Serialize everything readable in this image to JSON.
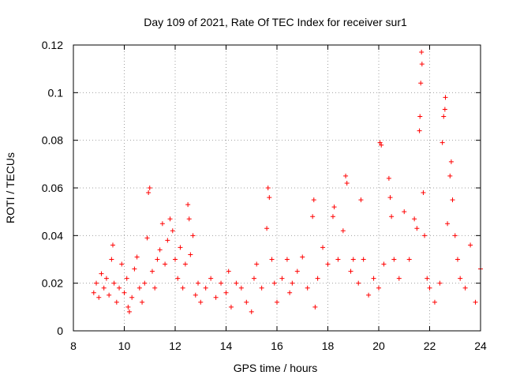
{
  "chart_data": {
    "type": "scatter",
    "title": "Day 109 of 2021, Rate Of TEC Index for receiver sur1",
    "xlabel": "GPS time / hours",
    "ylabel": "ROTI / TECUs",
    "xlim": [
      8,
      24
    ],
    "ylim": [
      0,
      0.12
    ],
    "x_ticks": [
      8,
      10,
      12,
      14,
      16,
      18,
      20,
      22,
      24
    ],
    "x_tick_labels": [
      "8",
      "10",
      "12",
      "14",
      "16",
      "18",
      "20",
      "22",
      "24"
    ],
    "y_ticks": [
      0,
      0.02,
      0.04,
      0.06,
      0.08,
      0.1,
      0.12
    ],
    "y_tick_labels": [
      "0",
      "0.02",
      "0.04",
      "0.06",
      "0.08",
      "0.1",
      "0.12"
    ],
    "grid": true,
    "marker": "plus",
    "color": "#ff0000",
    "series": [
      {
        "name": "ROTI",
        "points": [
          [
            8.8,
            0.016
          ],
          [
            8.9,
            0.02
          ],
          [
            9.0,
            0.014
          ],
          [
            9.1,
            0.024
          ],
          [
            9.2,
            0.018
          ],
          [
            9.3,
            0.022
          ],
          [
            9.4,
            0.015
          ],
          [
            9.5,
            0.03
          ],
          [
            9.55,
            0.036
          ],
          [
            9.6,
            0.02
          ],
          [
            9.7,
            0.012
          ],
          [
            9.8,
            0.018
          ],
          [
            9.9,
            0.028
          ],
          [
            10.0,
            0.016
          ],
          [
            10.1,
            0.022
          ],
          [
            10.15,
            0.01
          ],
          [
            10.2,
            0.008
          ],
          [
            10.3,
            0.014
          ],
          [
            10.4,
            0.026
          ],
          [
            10.5,
            0.031
          ],
          [
            10.6,
            0.018
          ],
          [
            10.7,
            0.012
          ],
          [
            10.8,
            0.02
          ],
          [
            10.9,
            0.039
          ],
          [
            10.95,
            0.058
          ],
          [
            11.0,
            0.06
          ],
          [
            11.1,
            0.025
          ],
          [
            11.2,
            0.018
          ],
          [
            11.3,
            0.03
          ],
          [
            11.4,
            0.034
          ],
          [
            11.5,
            0.045
          ],
          [
            11.6,
            0.028
          ],
          [
            11.7,
            0.038
          ],
          [
            11.8,
            0.047
          ],
          [
            11.9,
            0.042
          ],
          [
            12.0,
            0.03
          ],
          [
            12.1,
            0.022
          ],
          [
            12.2,
            0.035
          ],
          [
            12.3,
            0.018
          ],
          [
            12.4,
            0.028
          ],
          [
            12.5,
            0.053
          ],
          [
            12.55,
            0.047
          ],
          [
            12.6,
            0.032
          ],
          [
            12.7,
            0.04
          ],
          [
            12.8,
            0.015
          ],
          [
            12.9,
            0.02
          ],
          [
            13.0,
            0.012
          ],
          [
            13.2,
            0.018
          ],
          [
            13.4,
            0.022
          ],
          [
            13.6,
            0.014
          ],
          [
            13.8,
            0.02
          ],
          [
            14.0,
            0.016
          ],
          [
            14.1,
            0.025
          ],
          [
            14.2,
            0.01
          ],
          [
            14.4,
            0.02
          ],
          [
            14.6,
            0.018
          ],
          [
            14.8,
            0.012
          ],
          [
            15.0,
            0.008
          ],
          [
            15.1,
            0.022
          ],
          [
            15.2,
            0.028
          ],
          [
            15.4,
            0.018
          ],
          [
            15.6,
            0.043
          ],
          [
            15.65,
            0.06
          ],
          [
            15.7,
            0.056
          ],
          [
            15.8,
            0.03
          ],
          [
            15.9,
            0.02
          ],
          [
            16.0,
            0.012
          ],
          [
            16.2,
            0.022
          ],
          [
            16.4,
            0.03
          ],
          [
            16.5,
            0.016
          ],
          [
            16.6,
            0.02
          ],
          [
            16.8,
            0.025
          ],
          [
            17.0,
            0.031
          ],
          [
            17.2,
            0.018
          ],
          [
            17.4,
            0.048
          ],
          [
            17.45,
            0.055
          ],
          [
            17.5,
            0.01
          ],
          [
            17.6,
            0.022
          ],
          [
            17.8,
            0.035
          ],
          [
            18.0,
            0.028
          ],
          [
            18.2,
            0.048
          ],
          [
            18.25,
            0.052
          ],
          [
            18.4,
            0.03
          ],
          [
            18.6,
            0.042
          ],
          [
            18.7,
            0.065
          ],
          [
            18.75,
            0.062
          ],
          [
            18.9,
            0.025
          ],
          [
            19.0,
            0.03
          ],
          [
            19.2,
            0.02
          ],
          [
            19.3,
            0.055
          ],
          [
            19.4,
            0.03
          ],
          [
            19.6,
            0.015
          ],
          [
            19.8,
            0.022
          ],
          [
            20.0,
            0.018
          ],
          [
            20.05,
            0.079
          ],
          [
            20.1,
            0.078
          ],
          [
            20.2,
            0.028
          ],
          [
            20.4,
            0.064
          ],
          [
            20.45,
            0.056
          ],
          [
            20.5,
            0.048
          ],
          [
            20.6,
            0.03
          ],
          [
            20.8,
            0.022
          ],
          [
            21.0,
            0.05
          ],
          [
            21.2,
            0.03
          ],
          [
            21.4,
            0.047
          ],
          [
            21.5,
            0.043
          ],
          [
            21.6,
            0.084
          ],
          [
            21.62,
            0.09
          ],
          [
            21.65,
            0.104
          ],
          [
            21.68,
            0.117
          ],
          [
            21.7,
            0.112
          ],
          [
            21.75,
            0.058
          ],
          [
            21.8,
            0.04
          ],
          [
            21.9,
            0.022
          ],
          [
            22.0,
            0.018
          ],
          [
            22.2,
            0.012
          ],
          [
            22.4,
            0.02
          ],
          [
            22.5,
            0.079
          ],
          [
            22.55,
            0.09
          ],
          [
            22.6,
            0.093
          ],
          [
            22.62,
            0.098
          ],
          [
            22.7,
            0.045
          ],
          [
            22.8,
            0.065
          ],
          [
            22.85,
            0.071
          ],
          [
            22.9,
            0.055
          ],
          [
            23.0,
            0.04
          ],
          [
            23.1,
            0.03
          ],
          [
            23.2,
            0.022
          ],
          [
            23.4,
            0.018
          ],
          [
            23.6,
            0.036
          ],
          [
            23.8,
            0.012
          ],
          [
            24.0,
            0.026
          ]
        ]
      }
    ]
  }
}
